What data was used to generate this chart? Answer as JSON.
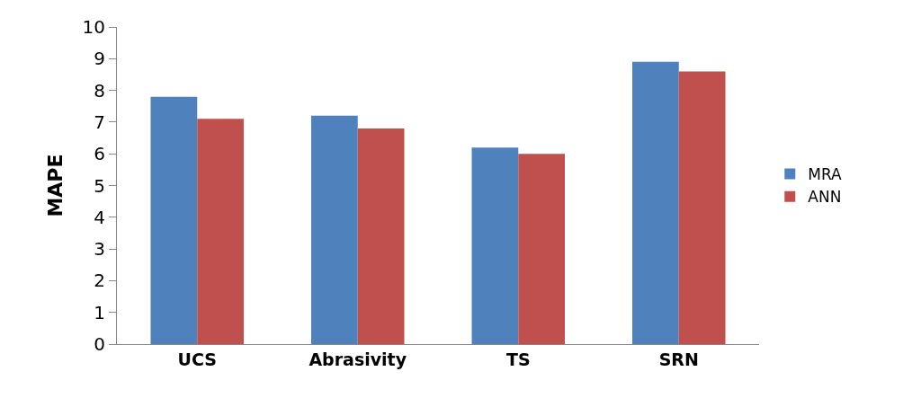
{
  "chart_data": {
    "type": "bar",
    "ylabel": "MAPE",
    "categories": [
      "UCS",
      "Abrasivity",
      "TS",
      "SRN"
    ],
    "series": [
      {
        "name": "MRA",
        "color": "#4f81bd",
        "values": [
          7.8,
          7.2,
          6.2,
          8.9
        ]
      },
      {
        "name": "ANN",
        "color": "#c0504d",
        "values": [
          7.1,
          6.8,
          6.0,
          8.6
        ]
      }
    ],
    "ylim": [
      0,
      10
    ],
    "yticks": [
      0,
      1,
      2,
      3,
      4,
      5,
      6,
      7,
      8,
      9,
      10
    ],
    "grid": false,
    "legend": "right"
  }
}
